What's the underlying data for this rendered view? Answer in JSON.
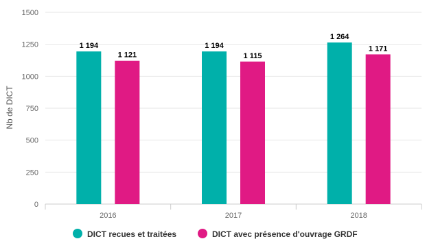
{
  "chart_data": {
    "type": "bar",
    "title": "",
    "xlabel": "",
    "ylabel": "Nb de DICT",
    "ylim": [
      0,
      1500
    ],
    "yticks": [
      0,
      250,
      500,
      750,
      1000,
      1250,
      1500
    ],
    "ytick_labels": [
      "0",
      "250",
      "500",
      "750",
      "1000",
      "1250",
      "1500"
    ],
    "categories": [
      "2016",
      "2017",
      "2018"
    ],
    "grid": true,
    "legend_position": "bottom",
    "series": [
      {
        "name": "DICT recues et traitées",
        "color": "#00b0aa",
        "values": [
          1194,
          1194,
          1264
        ],
        "labels": [
          "1 194",
          "1 194",
          "1 264"
        ]
      },
      {
        "name": "DICT avec présence d'ouvrage GRDF",
        "color": "#e01a84",
        "values": [
          1121,
          1115,
          1171
        ],
        "labels": [
          "1 121",
          "1 115",
          "1 171"
        ]
      }
    ]
  }
}
